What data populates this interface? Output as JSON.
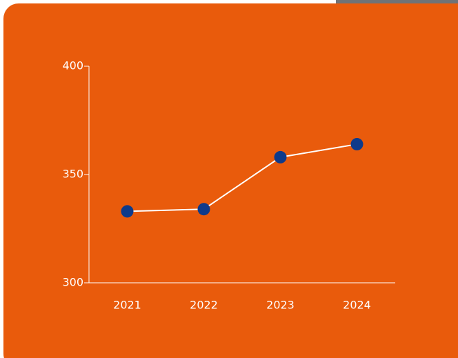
{
  "chart_data": {
    "type": "line",
    "categories": [
      "2021",
      "2022",
      "2023",
      "2024"
    ],
    "series": [
      {
        "color": "#0e3a8a",
        "values": [
          333,
          334,
          358,
          364
        ]
      }
    ],
    "ylim": [
      300,
      400
    ],
    "yticks": [
      300,
      350,
      400
    ],
    "grid": false
  }
}
